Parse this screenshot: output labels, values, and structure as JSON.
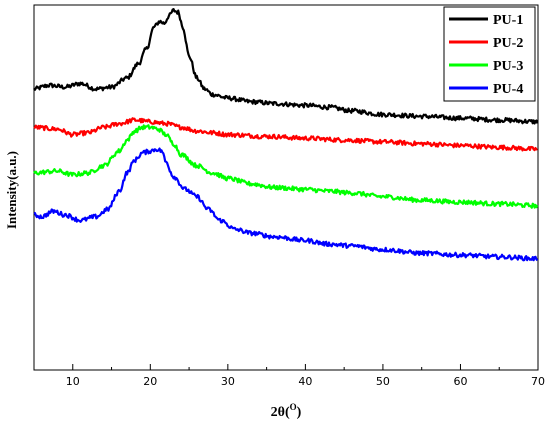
{
  "chart_data": {
    "type": "line",
    "title": "",
    "xlabel_main": "2θ(",
    "xlabel_sup": "O",
    "xlabel_end": ")",
    "ylabel": "Intensity(a.u.)",
    "xlim": [
      5,
      70
    ],
    "xticks": [
      "10",
      "20",
      "30",
      "40",
      "50",
      "60",
      "70"
    ],
    "y_tick_labels_shown": false,
    "legend_position": "top-right",
    "y_units": "relative (stacked, arbitrary units)",
    "series": [
      {
        "name": "PU-1",
        "color": "#000000",
        "points": [
          [
            5,
            0.77
          ],
          [
            7,
            0.78
          ],
          [
            9,
            0.775
          ],
          [
            11,
            0.785
          ],
          [
            13,
            0.77
          ],
          [
            15,
            0.775
          ],
          [
            17,
            0.8
          ],
          [
            18.5,
            0.84
          ],
          [
            19.5,
            0.88
          ],
          [
            20.5,
            0.94
          ],
          [
            21.2,
            0.955
          ],
          [
            21.8,
            0.95
          ],
          [
            22.4,
            0.97
          ],
          [
            23,
            0.985
          ],
          [
            23.6,
            0.98
          ],
          [
            24.2,
            0.94
          ],
          [
            25,
            0.86
          ],
          [
            26,
            0.8
          ],
          [
            27,
            0.77
          ],
          [
            28,
            0.755
          ],
          [
            30,
            0.745
          ],
          [
            33,
            0.735
          ],
          [
            36,
            0.73
          ],
          [
            40,
            0.725
          ],
          [
            43,
            0.72
          ],
          [
            46,
            0.71
          ],
          [
            50,
            0.7
          ],
          [
            55,
            0.695
          ],
          [
            60,
            0.69
          ],
          [
            65,
            0.685
          ],
          [
            70,
            0.68
          ]
        ]
      },
      {
        "name": "PU-2",
        "color": "#ff0000",
        "points": [
          [
            5,
            0.665
          ],
          [
            8,
            0.66
          ],
          [
            10,
            0.645
          ],
          [
            12,
            0.65
          ],
          [
            14,
            0.665
          ],
          [
            16,
            0.675
          ],
          [
            18,
            0.685
          ],
          [
            20,
            0.68
          ],
          [
            22,
            0.675
          ],
          [
            24,
            0.665
          ],
          [
            26,
            0.655
          ],
          [
            28,
            0.65
          ],
          [
            30,
            0.645
          ],
          [
            35,
            0.64
          ],
          [
            40,
            0.635
          ],
          [
            45,
            0.63
          ],
          [
            50,
            0.625
          ],
          [
            55,
            0.62
          ],
          [
            60,
            0.615
          ],
          [
            65,
            0.61
          ],
          [
            70,
            0.605
          ]
        ]
      },
      {
        "name": "PU-3",
        "color": "#00ff00",
        "points": [
          [
            5,
            0.54
          ],
          [
            8,
            0.545
          ],
          [
            10,
            0.535
          ],
          [
            12,
            0.54
          ],
          [
            14,
            0.56
          ],
          [
            16,
            0.6
          ],
          [
            17,
            0.63
          ],
          [
            18,
            0.655
          ],
          [
            19,
            0.665
          ],
          [
            20,
            0.665
          ],
          [
            21,
            0.66
          ],
          [
            22,
            0.645
          ],
          [
            23,
            0.62
          ],
          [
            24,
            0.59
          ],
          [
            26,
            0.56
          ],
          [
            28,
            0.54
          ],
          [
            30,
            0.525
          ],
          [
            33,
            0.51
          ],
          [
            36,
            0.5
          ],
          [
            40,
            0.495
          ],
          [
            43,
            0.49
          ],
          [
            46,
            0.485
          ],
          [
            50,
            0.475
          ],
          [
            55,
            0.465
          ],
          [
            60,
            0.46
          ],
          [
            65,
            0.455
          ],
          [
            70,
            0.45
          ]
        ]
      },
      {
        "name": "PU-4",
        "color": "#0000ff",
        "points": [
          [
            5,
            0.425
          ],
          [
            6,
            0.42
          ],
          [
            7.5,
            0.435
          ],
          [
            9,
            0.425
          ],
          [
            11,
            0.41
          ],
          [
            13,
            0.42
          ],
          [
            14.5,
            0.44
          ],
          [
            16,
            0.49
          ],
          [
            17,
            0.54
          ],
          [
            18,
            0.575
          ],
          [
            19,
            0.595
          ],
          [
            20,
            0.6
          ],
          [
            20.8,
            0.605
          ],
          [
            21.5,
            0.6
          ],
          [
            22,
            0.57
          ],
          [
            23,
            0.53
          ],
          [
            24.5,
            0.495
          ],
          [
            26,
            0.475
          ],
          [
            27.5,
            0.44
          ],
          [
            29,
            0.41
          ],
          [
            31,
            0.385
          ],
          [
            33,
            0.375
          ],
          [
            36,
            0.365
          ],
          [
            40,
            0.355
          ],
          [
            43,
            0.345
          ],
          [
            46,
            0.34
          ],
          [
            50,
            0.33
          ],
          [
            55,
            0.32
          ],
          [
            60,
            0.315
          ],
          [
            65,
            0.31
          ],
          [
            70,
            0.305
          ]
        ]
      }
    ]
  }
}
